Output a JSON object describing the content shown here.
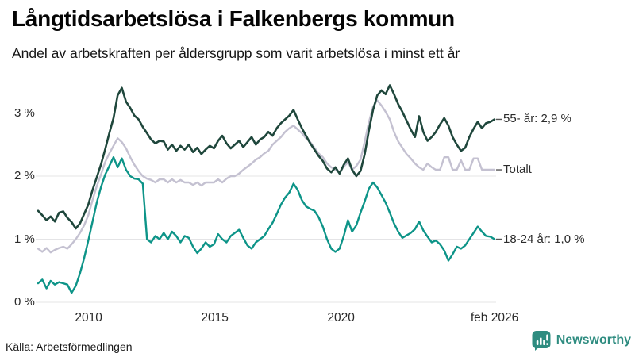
{
  "source": "Källa: Arbetsförmedlingen",
  "logo": {
    "text": "Newsworthy",
    "color": "#2e8c80"
  },
  "colors": {
    "background": "#ffffff",
    "grid": "#e4e4e6",
    "text": "#2a2a2a",
    "title_text": "#050505",
    "connector": "#555555",
    "series_55": "#1f473c",
    "series_totalt": "#c4c1d1",
    "series_18_24": "#0d9488",
    "logo_teal": "#2e8c80"
  },
  "chart_data": {
    "type": "line",
    "title": "Långtidsarbetslösa i Falkenbergs kommun",
    "subtitle": "Andel av arbetskraften per åldersgrupp som varit arbetslösa i minst ett år",
    "x_unit": "year (monthly share of labour force, sampled every 2nd month)",
    "x_range": [
      2008.0,
      2026.083
    ],
    "x_end_label": "feb 2026",
    "ylim": [
      0,
      3.6
    ],
    "grid": "horizontal only",
    "legend_position": "right end-of-line labels",
    "yticks": [
      {
        "label": "0 %",
        "value": 0
      },
      {
        "label": "1 %",
        "value": 1
      },
      {
        "label": "2 %",
        "value": 2
      },
      {
        "label": "3 %",
        "value": 3
      }
    ],
    "xticks": [
      {
        "label": "2010",
        "year": 2010
      },
      {
        "label": "2015",
        "year": 2015
      },
      {
        "label": "2020",
        "year": 2020
      },
      {
        "label": "feb 2026",
        "year": 2026.083
      }
    ],
    "series": [
      {
        "id": "55-ar",
        "name": "55- år",
        "end_label": "55- år: 2,9 %",
        "end_value": "2,9 %",
        "color": "#1f473c",
        "width": 2.6,
        "values": [
          1.45,
          1.38,
          1.3,
          1.36,
          1.28,
          1.42,
          1.44,
          1.34,
          1.27,
          1.17,
          1.25,
          1.4,
          1.55,
          1.78,
          1.98,
          2.18,
          2.42,
          2.68,
          2.92,
          3.28,
          3.4,
          3.18,
          3.08,
          2.96,
          2.9,
          2.78,
          2.68,
          2.58,
          2.52,
          2.56,
          2.55,
          2.42,
          2.5,
          2.4,
          2.48,
          2.42,
          2.5,
          2.38,
          2.45,
          2.35,
          2.42,
          2.48,
          2.44,
          2.56,
          2.64,
          2.52,
          2.44,
          2.5,
          2.56,
          2.46,
          2.54,
          2.62,
          2.5,
          2.58,
          2.62,
          2.7,
          2.64,
          2.76,
          2.84,
          2.9,
          2.96,
          3.05,
          2.9,
          2.76,
          2.64,
          2.52,
          2.42,
          2.32,
          2.24,
          2.12,
          2.06,
          2.14,
          2.04,
          2.18,
          2.28,
          2.1,
          2.0,
          2.08,
          2.35,
          2.72,
          3.05,
          3.28,
          3.36,
          3.3,
          3.44,
          3.3,
          3.14,
          3.02,
          2.88,
          2.74,
          2.62,
          2.95,
          2.7,
          2.56,
          2.62,
          2.7,
          2.82,
          2.92,
          2.8,
          2.62,
          2.5,
          2.4,
          2.45,
          2.62,
          2.75,
          2.86,
          2.76,
          2.84,
          2.86,
          2.9
        ]
      },
      {
        "id": "totalt",
        "name": "Totalt",
        "end_label": "Totalt",
        "end_value": "2,1 %",
        "color": "#c4c1d1",
        "width": 2.4,
        "values": [
          0.85,
          0.8,
          0.86,
          0.79,
          0.83,
          0.86,
          0.88,
          0.85,
          0.92,
          1.0,
          1.1,
          1.22,
          1.38,
          1.62,
          1.84,
          2.02,
          2.22,
          2.36,
          2.48,
          2.6,
          2.54,
          2.44,
          2.3,
          2.18,
          2.08,
          2.0,
          1.96,
          1.94,
          1.9,
          1.95,
          1.95,
          1.9,
          1.95,
          1.9,
          1.94,
          1.9,
          1.9,
          1.86,
          1.9,
          1.85,
          1.9,
          1.9,
          1.9,
          1.95,
          1.9,
          1.96,
          2.0,
          2.0,
          2.04,
          2.1,
          2.15,
          2.2,
          2.26,
          2.3,
          2.36,
          2.4,
          2.5,
          2.56,
          2.62,
          2.7,
          2.76,
          2.8,
          2.74,
          2.68,
          2.6,
          2.54,
          2.45,
          2.36,
          2.3,
          2.2,
          2.14,
          2.1,
          2.05,
          2.15,
          2.22,
          2.1,
          2.16,
          2.26,
          2.55,
          2.85,
          3.1,
          3.2,
          3.12,
          3.02,
          2.9,
          2.7,
          2.55,
          2.45,
          2.35,
          2.28,
          2.2,
          2.14,
          2.1,
          2.2,
          2.14,
          2.1,
          2.1,
          2.3,
          2.3,
          2.1,
          2.1,
          2.25,
          2.1,
          2.1,
          2.28,
          2.28,
          2.1,
          2.1,
          2.1,
          2.1
        ]
      },
      {
        "id": "18-24-ar",
        "name": "18-24 år",
        "end_label": "18-24 år: 1,0 %",
        "end_value": "1,0 %",
        "color": "#0d9488",
        "width": 2.4,
        "values": [
          0.3,
          0.36,
          0.22,
          0.34,
          0.28,
          0.32,
          0.3,
          0.28,
          0.15,
          0.26,
          0.46,
          0.7,
          0.98,
          1.28,
          1.58,
          1.82,
          2.02,
          2.16,
          2.3,
          2.14,
          2.28,
          2.1,
          2.0,
          1.96,
          1.95,
          1.88,
          1.0,
          0.95,
          1.05,
          1.0,
          1.1,
          1.0,
          1.12,
          1.05,
          0.95,
          1.05,
          1.02,
          0.88,
          0.78,
          0.85,
          0.95,
          0.88,
          0.92,
          1.08,
          1.0,
          0.95,
          1.05,
          1.1,
          1.15,
          1.02,
          0.9,
          0.85,
          0.95,
          1.0,
          1.05,
          1.16,
          1.26,
          1.4,
          1.55,
          1.66,
          1.74,
          1.88,
          1.78,
          1.62,
          1.52,
          1.48,
          1.45,
          1.35,
          1.2,
          1.0,
          0.85,
          0.8,
          0.85,
          1.05,
          1.3,
          1.12,
          1.22,
          1.42,
          1.6,
          1.8,
          1.9,
          1.82,
          1.7,
          1.58,
          1.42,
          1.25,
          1.12,
          1.02,
          1.06,
          1.1,
          1.16,
          1.28,
          1.14,
          1.04,
          0.95,
          0.98,
          0.92,
          0.82,
          0.66,
          0.76,
          0.88,
          0.85,
          0.9,
          1.0,
          1.1,
          1.2,
          1.12,
          1.05,
          1.04,
          1.0
        ]
      }
    ]
  }
}
